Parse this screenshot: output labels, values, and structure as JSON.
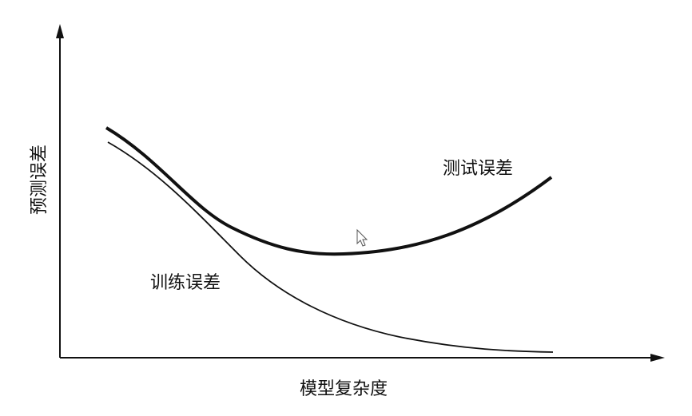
{
  "axes": {
    "y_label": "预测误差",
    "x_label": "模型复杂度"
  },
  "curves": [
    {
      "label": "测试误差"
    },
    {
      "label": "训练误差"
    }
  ]
}
